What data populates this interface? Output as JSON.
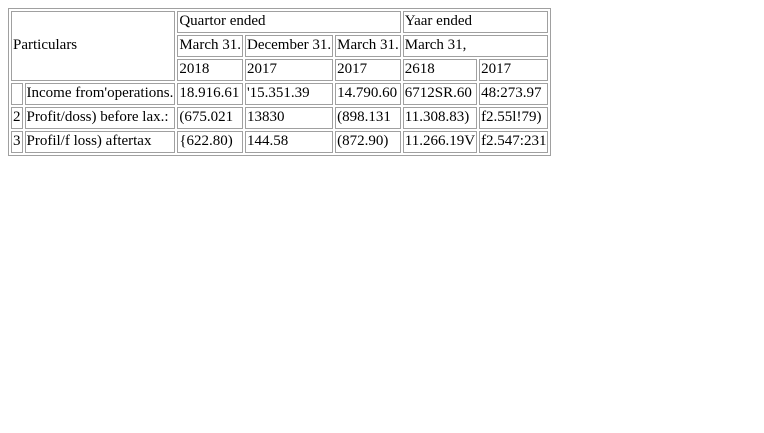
{
  "header": {
    "particulars": "Particulars",
    "quarter_ended": "Quartor ended",
    "year_ended": "Yaar ended",
    "dates": [
      "March 31.",
      "December 31.",
      "March 31.",
      "March 31,"
    ],
    "years": [
      "2018",
      "2017",
      "2017",
      "2618",
      "2017"
    ]
  },
  "rows": [
    {
      "num": "",
      "label": "Income from'operations.",
      "values": [
        "18.916.61",
        "'15.351.39",
        "14.790.60",
        "6712SR.60",
        "48:273.97"
      ]
    },
    {
      "num": "2",
      "label": "Profit/doss) before lax.:",
      "values": [
        "(675.021",
        "13830",
        "(898.131",
        "11.308.83)",
        "f2.55l!79)"
      ]
    },
    {
      "num": "3",
      "label": "Profil/f loss) aftertax",
      "values": [
        "{622.80)",
        "144.58",
        "(872.90)",
        "11.266.19V",
        "f2.547:231"
      ]
    }
  ]
}
